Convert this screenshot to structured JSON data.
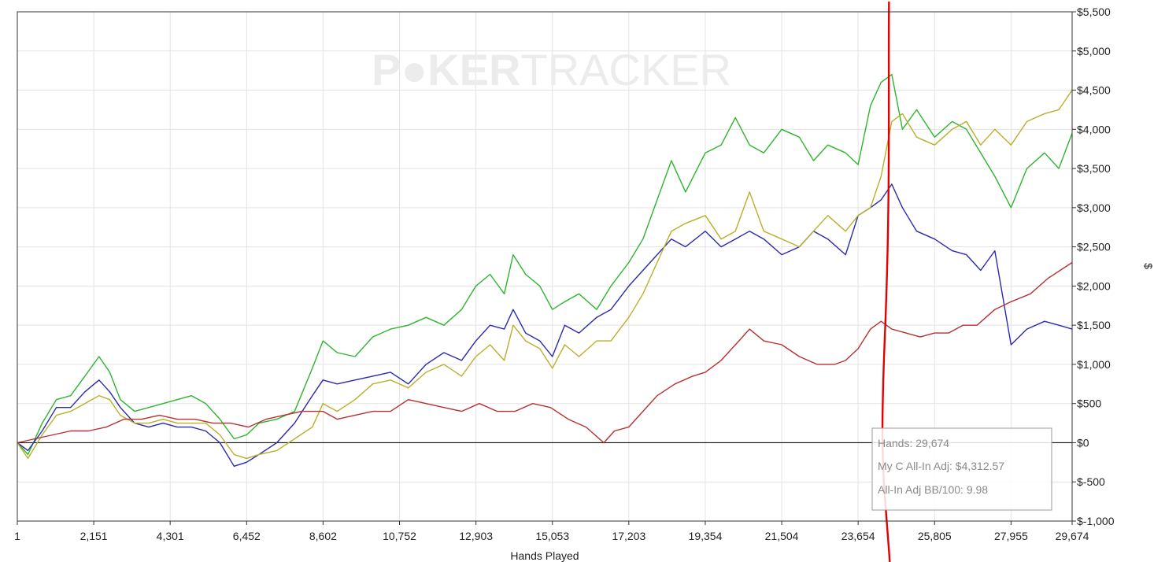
{
  "watermark": {
    "brand_bold": "P●KER",
    "brand_light": "TRACKER"
  },
  "tooltip": {
    "hands": "Hands: 29,674",
    "all_in_adj": "My C All-In Adj: $4,312.57",
    "bb_per_100": "All-In Adj BB/100: 9.98"
  },
  "chart_data": {
    "type": "line",
    "title": "",
    "xlabel": "Hands Played",
    "ylabel": "$",
    "xlim": [
      1,
      29674
    ],
    "ylim": [
      -1000,
      5500
    ],
    "x_ticks": [
      1,
      2151,
      4301,
      6452,
      8602,
      10752,
      12903,
      15053,
      17203,
      19354,
      21504,
      23654,
      25805,
      27955,
      29674
    ],
    "x_tick_labels": [
      "1",
      "2,151",
      "4,301",
      "6,452",
      "8,602",
      "10,752",
      "12,903",
      "15,053",
      "17,203",
      "19,354",
      "21,504",
      "23,654",
      "25,805",
      "27,955",
      "29,674"
    ],
    "y_ticks": [
      -1000,
      -500,
      0,
      500,
      1000,
      1500,
      2000,
      2500,
      3000,
      3500,
      4000,
      4500,
      5000,
      5500
    ],
    "y_tick_labels": [
      "$-1,000",
      "$-500",
      "$0",
      "$500",
      "$1,000",
      "$1,500",
      "$2,000",
      "$2,500",
      "$3,000",
      "$3,500",
      "$4,000",
      "$4,500",
      "$5,000",
      "$5,500"
    ],
    "grid": true,
    "legend": "none",
    "annotation": {
      "type": "hand-drawn vertical line",
      "x": 24500,
      "color": "#e00000"
    },
    "series": [
      {
        "color": "#2db52d",
        "x": [
          1,
          300,
          700,
          1100,
          1500,
          1900,
          2300,
          2600,
          2900,
          3300,
          3700,
          4100,
          4500,
          4900,
          5300,
          5700,
          6100,
          6450,
          6800,
          7300,
          7800,
          8300,
          8600,
          9000,
          9500,
          10000,
          10500,
          11000,
          11500,
          12000,
          12500,
          12900,
          13300,
          13700,
          13950,
          14300,
          14700,
          15053,
          15400,
          15800,
          16300,
          16700,
          17203,
          17600,
          18000,
          18400,
          18800,
          19354,
          19800,
          20200,
          20600,
          21000,
          21504,
          22000,
          22400,
          22800,
          23300,
          23654,
          24000,
          24300,
          24600,
          24900,
          25300,
          25805,
          26300,
          26700,
          27100,
          27500,
          27955,
          28400,
          28900,
          29300,
          29674
        ],
        "y": [
          0,
          -150,
          250,
          550,
          600,
          850,
          1100,
          900,
          550,
          400,
          450,
          500,
          550,
          600,
          500,
          300,
          50,
          100,
          250,
          300,
          400,
          950,
          1300,
          1150,
          1100,
          1350,
          1450,
          1500,
          1600,
          1500,
          1700,
          2000,
          2150,
          1900,
          2400,
          2150,
          2000,
          1700,
          1800,
          1900,
          1700,
          2000,
          2300,
          2600,
          3100,
          3600,
          3200,
          3700,
          3800,
          4150,
          3800,
          3700,
          4000,
          3900,
          3600,
          3800,
          3700,
          3550,
          4300,
          4600,
          4700,
          4000,
          4250,
          3900,
          4100,
          4000,
          3700,
          3400,
          3000,
          3500,
          3700,
          3500,
          3950
        ]
      },
      {
        "color": "#2a2ab0",
        "x": [
          1,
          300,
          700,
          1100,
          1500,
          1900,
          2300,
          2600,
          2900,
          3300,
          3700,
          4100,
          4500,
          4900,
          5300,
          5700,
          6100,
          6450,
          6800,
          7300,
          7800,
          8300,
          8600,
          9000,
          9500,
          10000,
          10500,
          11000,
          11500,
          12000,
          12500,
          12900,
          13300,
          13700,
          13950,
          14300,
          14700,
          15053,
          15400,
          15800,
          16300,
          16700,
          17203,
          17600,
          18000,
          18400,
          18800,
          19354,
          19800,
          20200,
          20600,
          21000,
          21504,
          22000,
          22400,
          22800,
          23300,
          23654,
          24000,
          24300,
          24600,
          24900,
          25300,
          25805,
          26300,
          26700,
          27100,
          27500,
          27955,
          28400,
          28900,
          29300,
          29674
        ],
        "y": [
          0,
          -100,
          150,
          450,
          450,
          650,
          800,
          650,
          450,
          250,
          200,
          250,
          200,
          200,
          150,
          0,
          -300,
          -250,
          -150,
          0,
          250,
          600,
          800,
          750,
          800,
          850,
          900,
          750,
          1000,
          1150,
          1050,
          1300,
          1500,
          1450,
          1700,
          1400,
          1300,
          1100,
          1500,
          1400,
          1600,
          1700,
          2000,
          2200,
          2400,
          2600,
          2500,
          2700,
          2500,
          2600,
          2700,
          2600,
          2400,
          2500,
          2700,
          2600,
          2400,
          2900,
          3000,
          3100,
          3300,
          3000,
          2700,
          2600,
          2450,
          2400,
          2200,
          2450,
          1250,
          1450,
          1550,
          1500,
          1450
        ]
      },
      {
        "color": "#b8b02a",
        "x": [
          1,
          300,
          700,
          1100,
          1500,
          1900,
          2300,
          2600,
          2900,
          3300,
          3700,
          4100,
          4500,
          4900,
          5300,
          5700,
          6100,
          6450,
          6800,
          7300,
          7800,
          8300,
          8600,
          9000,
          9500,
          10000,
          10500,
          11000,
          11500,
          12000,
          12500,
          12900,
          13300,
          13700,
          13950,
          14300,
          14700,
          15053,
          15400,
          15800,
          16300,
          16700,
          17203,
          17600,
          18000,
          18400,
          18800,
          19354,
          19800,
          20200,
          20600,
          21000,
          21504,
          22000,
          22400,
          22800,
          23300,
          23654,
          24000,
          24300,
          24600,
          24900,
          25300,
          25805,
          26300,
          26700,
          27100,
          27500,
          27955,
          28400,
          28900,
          29300,
          29674
        ],
        "y": [
          0,
          -200,
          100,
          350,
          400,
          500,
          600,
          550,
          350,
          250,
          250,
          300,
          250,
          250,
          250,
          100,
          -150,
          -200,
          -150,
          -100,
          50,
          200,
          500,
          400,
          550,
          750,
          800,
          700,
          900,
          1000,
          850,
          1100,
          1250,
          1050,
          1500,
          1300,
          1200,
          950,
          1250,
          1100,
          1300,
          1300,
          1600,
          1900,
          2300,
          2700,
          2800,
          2900,
          2600,
          2700,
          3200,
          2700,
          2600,
          2500,
          2700,
          2900,
          2700,
          2900,
          3000,
          3400,
          4100,
          4200,
          3900,
          3800,
          4000,
          4100,
          3800,
          4000,
          3800,
          4100,
          4200,
          4250,
          4500
        ]
      },
      {
        "color": "#b83030",
        "x": [
          1,
          500,
          1000,
          1500,
          2000,
          2500,
          3000,
          3500,
          4000,
          4500,
          5000,
          5500,
          6000,
          6500,
          7000,
          7500,
          8000,
          8600,
          9000,
          9500,
          10000,
          10500,
          11000,
          11500,
          12000,
          12500,
          13000,
          13500,
          14000,
          14500,
          15000,
          15500,
          16000,
          16500,
          16800,
          17200,
          17600,
          18000,
          18500,
          19000,
          19354,
          19800,
          20300,
          20600,
          21000,
          21504,
          22000,
          22500,
          23000,
          23300,
          23654,
          24000,
          24300,
          24600,
          25000,
          25400,
          25805,
          26200,
          26600,
          27000,
          27500,
          27955,
          28500,
          29000,
          29674
        ],
        "y": [
          0,
          50,
          100,
          150,
          150,
          200,
          300,
          300,
          350,
          300,
          300,
          250,
          250,
          200,
          300,
          350,
          400,
          400,
          300,
          350,
          400,
          400,
          550,
          500,
          450,
          400,
          500,
          400,
          400,
          500,
          450,
          300,
          200,
          0,
          150,
          200,
          400,
          600,
          750,
          850,
          900,
          1050,
          1300,
          1450,
          1300,
          1250,
          1100,
          1000,
          1000,
          1050,
          1200,
          1450,
          1550,
          1450,
          1400,
          1350,
          1400,
          1400,
          1500,
          1500,
          1700,
          1800,
          1900,
          2100,
          2300
        ]
      }
    ]
  }
}
